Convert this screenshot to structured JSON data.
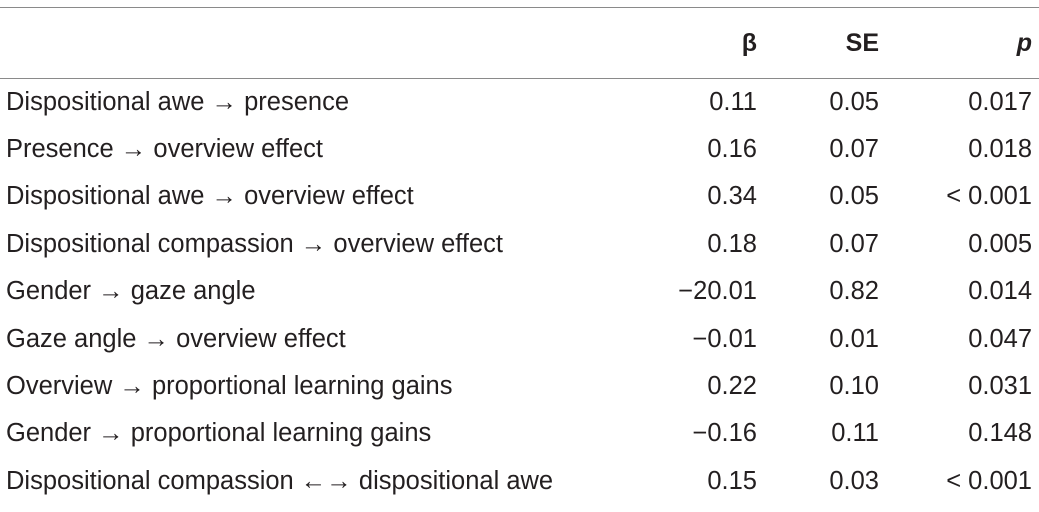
{
  "table": {
    "headers": {
      "path": "",
      "beta": "β",
      "se": "SE",
      "p": "p"
    },
    "rows": [
      {
        "path": "Dispositional awe → presence",
        "beta": "0.11",
        "se": "0.05",
        "p": "0.017"
      },
      {
        "path": "Presence → overview effect",
        "beta": "0.16",
        "se": "0.07",
        "p": "0.018"
      },
      {
        "path": "Dispositional awe → overview effect",
        "beta": "0.34",
        "se": "0.05",
        "p": "< 0.001"
      },
      {
        "path": "Dispositional compassion → overview effect",
        "beta": "0.18",
        "se": "0.07",
        "p": "0.005"
      },
      {
        "path": "Gender → gaze angle",
        "beta": "−20.01",
        "se": "0.82",
        "p": "0.014"
      },
      {
        "path": "Gaze angle → overview effect",
        "beta": "−0.01",
        "se": "0.01",
        "p": "0.047"
      },
      {
        "path": "Overview → proportional learning gains",
        "beta": "0.22",
        "se": "0.10",
        "p": "0.031"
      },
      {
        "path": "Gender → proportional learning gains",
        "beta": "−0.16",
        "se": "0.11",
        "p": "0.148"
      },
      {
        "path": "Dispositional compassion ←→ dispositional awe",
        "beta": "0.15",
        "se": "0.03",
        "p": "< 0.001"
      }
    ]
  }
}
